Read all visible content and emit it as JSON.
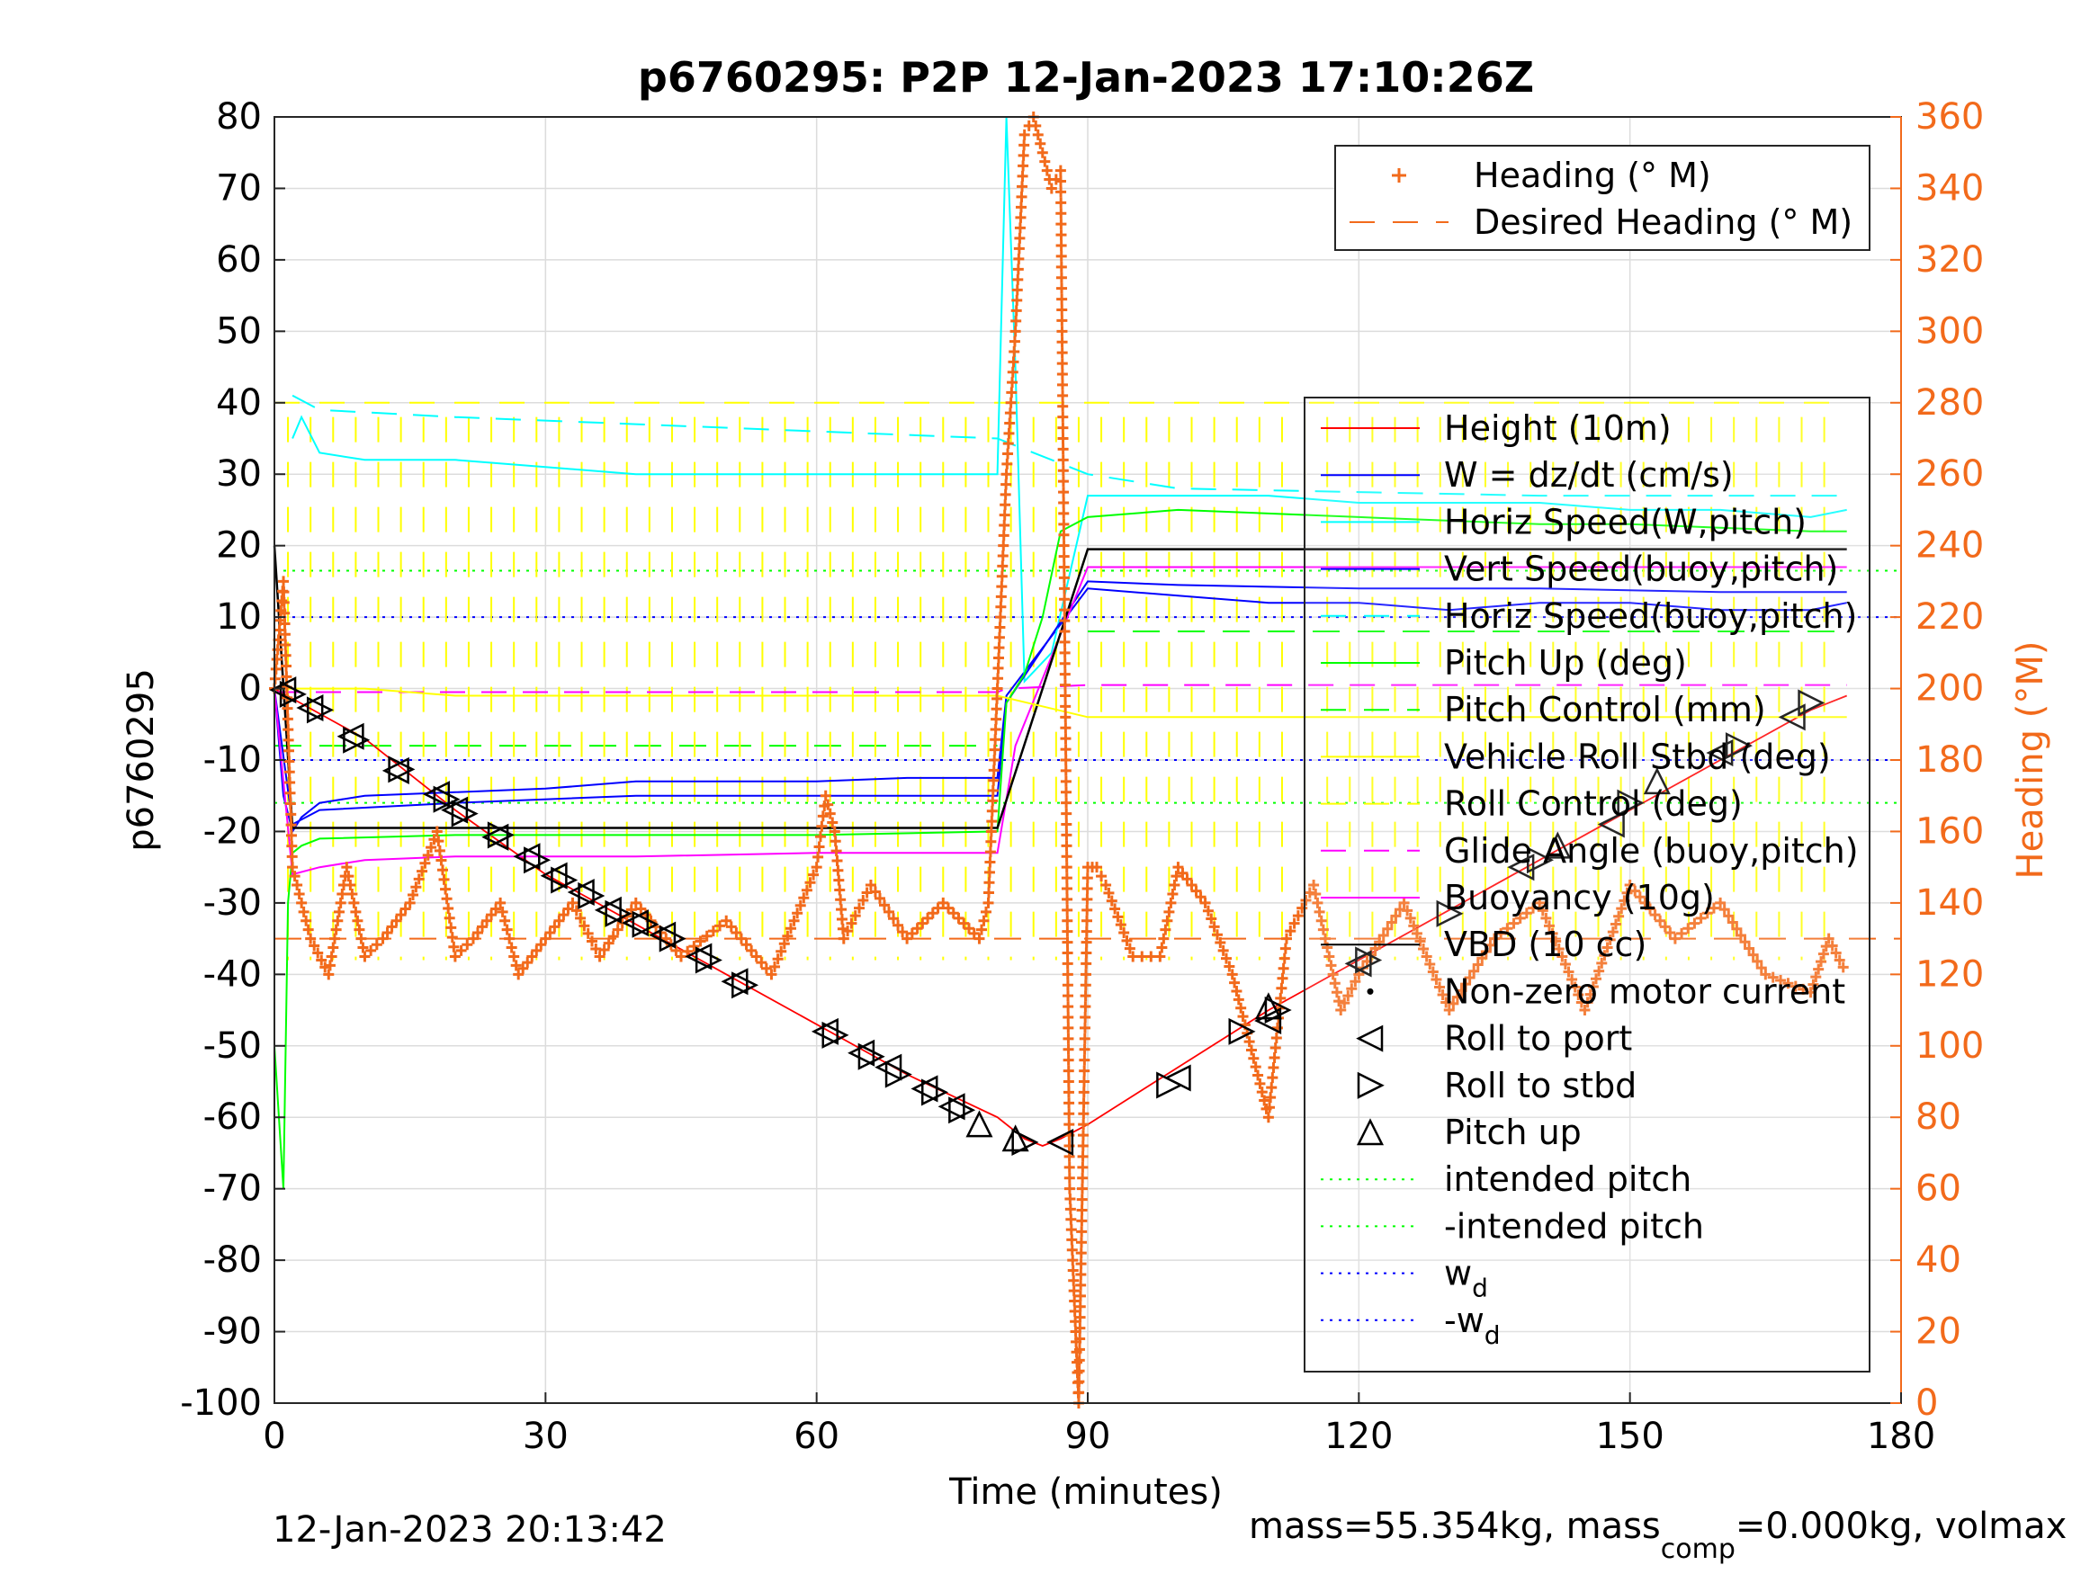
{
  "chart_data": {
    "type": "line",
    "title": "p6760295: P2P 12-Jan-2023 17:10:26Z",
    "xlabel": "Time (minutes)",
    "ylabel": "p6760295",
    "y2label": "Heading (°M)",
    "xlim": [
      0,
      180
    ],
    "ylim": [
      -100,
      80
    ],
    "y2lim": [
      0,
      360
    ],
    "xticks": [
      "0",
      "30",
      "60",
      "90",
      "120",
      "150",
      "180"
    ],
    "yticks": [
      "80",
      "70",
      "60",
      "50",
      "40",
      "30",
      "20",
      "10",
      "0",
      "-10",
      "-20",
      "-30",
      "-40",
      "-50",
      "-60",
      "-70",
      "-80",
      "-90",
      "-100"
    ],
    "y2ticks": [
      "360",
      "340",
      "320",
      "300",
      "280",
      "260",
      "240",
      "220",
      "200",
      "180",
      "160",
      "140",
      "120",
      "100",
      "80",
      "60",
      "40",
      "20",
      "0"
    ],
    "grid": true,
    "footer_left": "12-Jan-2023 20:13:42",
    "footer_right_prefix": "mass=55.354kg, mass",
    "footer_right_sub": "comp",
    "footer_right_suffix": "=0.000kg, volmax",
    "colors": {
      "height": "#ff0000",
      "w": "#0000ff",
      "horiz_w": "#00ffff",
      "vert_buoy": "#0000ff",
      "horiz_buoy": "#00ffff",
      "pitch": "#00ff00",
      "pitch_control": "#00ff00",
      "roll": "#ffff00",
      "roll_control": "#ffff00",
      "glide_angle": "#ff00ff",
      "buoyancy": "#ff00ff",
      "vbd": "#000000",
      "heading": "#f26a1b",
      "wd": "#0000ff"
    },
    "legend_heading": {
      "placement": "top-right",
      "entries": [
        {
          "label": "Heading (° M)",
          "style": "plus",
          "color": "#f26a1b"
        },
        {
          "label": "Desired Heading (° M)",
          "style": "dashed",
          "color": "#f26a1b"
        }
      ]
    },
    "legend_main": {
      "placement": "right",
      "entries": [
        {
          "label": "Height (10m)",
          "style": "solid",
          "color": "#ff0000"
        },
        {
          "label": "W = dz/dt (cm/s)",
          "style": "solid",
          "color": "#0000ff"
        },
        {
          "label": "Horiz Speed(W,pitch)",
          "style": "solid",
          "color": "#00ffff"
        },
        {
          "label": "Vert Speed(buoy,pitch)",
          "style": "solid",
          "color": "#0000ff"
        },
        {
          "label": "Horiz Speed(buoy,pitch)",
          "style": "dashed",
          "color": "#00ffff"
        },
        {
          "label": "Pitch Up (deg)",
          "style": "solid",
          "color": "#00ff00"
        },
        {
          "label": "Pitch Control (mm)",
          "style": "dashed",
          "color": "#00ff00"
        },
        {
          "label": "Vehicle Roll Stbd (deg)",
          "style": "solid",
          "color": "#ffff00"
        },
        {
          "label": "Roll Control (deg)",
          "style": "dashed",
          "color": "#ffff00"
        },
        {
          "label": "Glide Angle (buoy,pitch)",
          "style": "dashed",
          "color": "#ff00ff"
        },
        {
          "label": "Buoyancy (10g)",
          "style": "solid",
          "color": "#ff00ff"
        },
        {
          "label": "VBD (10 cc)",
          "style": "solid",
          "color": "#000000"
        },
        {
          "label": "Non-zero motor current",
          "style": "dot",
          "color": "#000000"
        },
        {
          "label": "Roll to port",
          "style": "tri-left",
          "color": "#000000"
        },
        {
          "label": "Roll to stbd",
          "style": "tri-right",
          "color": "#000000"
        },
        {
          "label": "Pitch up",
          "style": "tri-up",
          "color": "#000000"
        },
        {
          "label": "intended pitch",
          "style": "dotted",
          "color": "#00ff00"
        },
        {
          "label": "-intended pitch",
          "style": "dotted",
          "color": "#00ff00"
        },
        {
          "label": "w",
          "sub": "d",
          "style": "dotted",
          "color": "#0000ff"
        },
        {
          "label": "-w",
          "sub": "d",
          "style": "dotted",
          "color": "#0000ff"
        }
      ]
    },
    "reference_lines": {
      "intended_pitch": 16.5,
      "neg_intended_pitch": -16,
      "wd": 10,
      "neg_wd": -10,
      "desired_heading": 130,
      "pitch_control_dive": -8,
      "pitch_control_climb": 8,
      "glide_angle_dive": -0.5,
      "glide_angle_climb": 0.5
    },
    "series": [
      {
        "key": "height",
        "name": "Height (10m)",
        "x": [
          0,
          10,
          20,
          30,
          40,
          50,
          60,
          70,
          80,
          83,
          85,
          87,
          90,
          100,
          110,
          120,
          130,
          140,
          150,
          160,
          170,
          174
        ],
        "y": [
          0,
          -7,
          -17,
          -26,
          -33,
          -40,
          -47,
          -54,
          -60,
          -63,
          -64,
          -63,
          -61,
          -53,
          -45,
          -38,
          -31,
          -24,
          -17,
          -10,
          -3,
          -1
        ]
      },
      {
        "key": "w",
        "name": "W = dz/dt (cm/s)",
        "x": [
          0,
          1,
          2,
          3,
          5,
          10,
          20,
          30,
          40,
          50,
          60,
          70,
          80,
          81,
          90,
          100,
          110,
          120,
          130,
          140,
          150,
          160,
          170,
          174
        ],
        "y": [
          0,
          -15,
          -20,
          -18,
          -16,
          -15,
          -14.5,
          -14,
          -13,
          -13,
          -13,
          -12.5,
          -12.5,
          -1,
          14,
          13,
          12,
          12,
          11,
          12,
          12,
          11,
          11,
          12
        ]
      },
      {
        "key": "horiz_w",
        "name": "Horiz Speed(W,pitch)",
        "x": [
          2,
          3,
          5,
          10,
          20,
          30,
          40,
          50,
          60,
          70,
          80,
          81,
          82,
          83,
          86,
          90,
          100,
          110,
          120,
          130,
          140,
          150,
          160,
          170,
          174
        ],
        "y": [
          35,
          38,
          33,
          32,
          32,
          31,
          30,
          30,
          30,
          30,
          30,
          80,
          45,
          1,
          5,
          27,
          27,
          27,
          26,
          26,
          26,
          25,
          25,
          24,
          25
        ]
      },
      {
        "key": "vert_buoy",
        "name": "Vert Speed(buoy,pitch)",
        "x": [
          0,
          2,
          5,
          20,
          40,
          60,
          80,
          81,
          90,
          100,
          120,
          140,
          160,
          174
        ],
        "y": [
          0,
          -19,
          -17,
          -16,
          -15,
          -15,
          -15,
          -2,
          15,
          14.5,
          14,
          14,
          13.5,
          13.5
        ]
      },
      {
        "key": "horiz_buoy",
        "name": "Horiz Speed(buoy,pitch)",
        "x": [
          2,
          5,
          20,
          40,
          60,
          80,
          90,
          100,
          120,
          140,
          160,
          174
        ],
        "y": [
          41,
          39,
          38,
          37,
          36,
          35,
          30,
          28,
          27.5,
          27,
          27,
          27
        ]
      },
      {
        "key": "pitch",
        "name": "Pitch Up (deg)",
        "x": [
          0,
          1,
          1.5,
          2,
          3,
          5,
          20,
          40,
          60,
          80,
          81,
          82,
          83,
          85,
          87,
          90,
          100,
          110,
          120,
          130,
          140,
          150,
          160,
          170,
          174
        ],
        "y": [
          -50,
          -70,
          -30,
          -23,
          -22,
          -21,
          -20.5,
          -20.5,
          -20.5,
          -20,
          -2,
          0,
          2,
          10,
          22,
          24,
          25,
          24.5,
          24,
          23.5,
          23,
          23,
          22.5,
          22,
          22
        ]
      },
      {
        "key": "glide_angle",
        "name": "Glide Angle (buoy,pitch)",
        "x": [
          0,
          80,
          81,
          90,
          174
        ],
        "y": [
          -0.5,
          -0.5,
          0,
          0.5,
          0.5
        ]
      },
      {
        "key": "buoyancy",
        "name": "Buoyancy (10g)",
        "x": [
          0,
          2,
          5,
          10,
          20,
          40,
          60,
          80,
          82,
          90,
          120,
          150,
          174
        ],
        "y": [
          0,
          -26,
          -25,
          -24,
          -23.5,
          -23.5,
          -23,
          -23,
          -8,
          17,
          17,
          17,
          17
        ]
      },
      {
        "key": "vbd",
        "name": "VBD (10 cc)",
        "x": [
          0,
          2,
          5,
          80,
          90,
          174
        ],
        "y": [
          20,
          -19.5,
          -19.5,
          -19.5,
          19.5,
          19.5
        ]
      },
      {
        "key": "roll",
        "name": "Vehicle Roll Stbd (deg)",
        "x": [
          0,
          10,
          20,
          30,
          40,
          50,
          60,
          70,
          80,
          90,
          100,
          110,
          120,
          130,
          140,
          150,
          160,
          170,
          174
        ],
        "y": [
          0,
          0,
          -1,
          -1,
          -1,
          -1,
          -1,
          -1,
          -1,
          -4,
          -4,
          -4,
          -4,
          -4,
          -4,
          -4,
          -4,
          -4,
          -4
        ]
      },
      {
        "key": "heading",
        "name": "Heading (° M)",
        "axis": "right",
        "x": [
          0,
          1,
          2,
          4,
          6,
          8,
          10,
          12,
          15,
          18,
          20,
          22,
          25,
          27,
          30,
          33,
          36,
          40,
          45,
          50,
          55,
          60,
          61,
          62,
          63,
          66,
          70,
          74,
          78,
          79,
          80,
          81,
          82,
          83,
          84,
          85,
          86,
          87,
          88,
          89,
          90,
          91,
          92,
          95,
          98,
          100,
          103,
          106,
          110,
          112,
          115,
          118,
          120,
          125,
          130,
          135,
          140,
          145,
          150,
          155,
          160,
          165,
          170,
          172,
          174
        ],
        "y": [
          200,
          230,
          150,
          130,
          120,
          150,
          125,
          130,
          140,
          160,
          125,
          130,
          140,
          120,
          130,
          140,
          125,
          140,
          125,
          135,
          120,
          150,
          170,
          160,
          130,
          145,
          130,
          140,
          130,
          140,
          200,
          260,
          300,
          355,
          360,
          350,
          340,
          345,
          60,
          0,
          150,
          150,
          145,
          125,
          125,
          150,
          140,
          120,
          80,
          130,
          145,
          110,
          120,
          140,
          110,
          130,
          140,
          110,
          145,
          130,
          140,
          120,
          115,
          130,
          120
        ]
      }
    ],
    "markers": {
      "roll_to_port": [
        [
          1,
          -0.2
        ],
        [
          4,
          -2.7
        ],
        [
          8.5,
          -6.7
        ],
        [
          13.5,
          -11.5
        ],
        [
          18,
          -14.8
        ],
        [
          20,
          -17
        ],
        [
          24.5,
          -20.8
        ],
        [
          28,
          -23.5
        ],
        [
          31,
          -26.2
        ],
        [
          34,
          -28.5
        ],
        [
          37,
          -31
        ],
        [
          40,
          -32.8
        ],
        [
          43,
          -34.5
        ],
        [
          47,
          -37.5
        ],
        [
          51,
          -41
        ],
        [
          61,
          -48
        ],
        [
          65,
          -51
        ],
        [
          68,
          -53
        ],
        [
          72,
          -56
        ],
        [
          75,
          -58.5
        ],
        [
          87,
          -63.5
        ],
        [
          100,
          -54.5
        ],
        [
          110,
          -46.5
        ],
        [
          120,
          -38.5
        ],
        [
          138,
          -25
        ],
        [
          148,
          -19
        ],
        [
          160,
          -9
        ],
        [
          168,
          -4
        ]
      ],
      "roll_to_stbd": [
        [
          2,
          -0.8
        ],
        [
          5,
          -3
        ],
        [
          9,
          -7.2
        ],
        [
          14,
          -11.3
        ],
        [
          19,
          -15.5
        ],
        [
          21,
          -17.5
        ],
        [
          25,
          -20.5
        ],
        [
          29,
          -24
        ],
        [
          32,
          -26.8
        ],
        [
          35,
          -29
        ],
        [
          38,
          -31.5
        ],
        [
          41,
          -33
        ],
        [
          44,
          -35
        ],
        [
          48,
          -38
        ],
        [
          52,
          -41.5
        ],
        [
          62,
          -48.5
        ],
        [
          66,
          -51.5
        ],
        [
          69,
          -54
        ],
        [
          73,
          -56.5
        ],
        [
          76,
          -59
        ],
        [
          83,
          -63.5
        ],
        [
          99,
          -55.5
        ],
        [
          107,
          -48
        ],
        [
          111,
          -45
        ],
        [
          121,
          -38
        ],
        [
          130,
          -31.5
        ],
        [
          140,
          -24
        ],
        [
          150,
          -16
        ],
        [
          162,
          -8
        ],
        [
          170,
          -2
        ]
      ],
      "pitch_up": [
        [
          78,
          -61
        ],
        [
          82,
          -63
        ],
        [
          110,
          -44.5
        ],
        [
          142,
          -22
        ],
        [
          153,
          -13
        ]
      ]
    }
  }
}
